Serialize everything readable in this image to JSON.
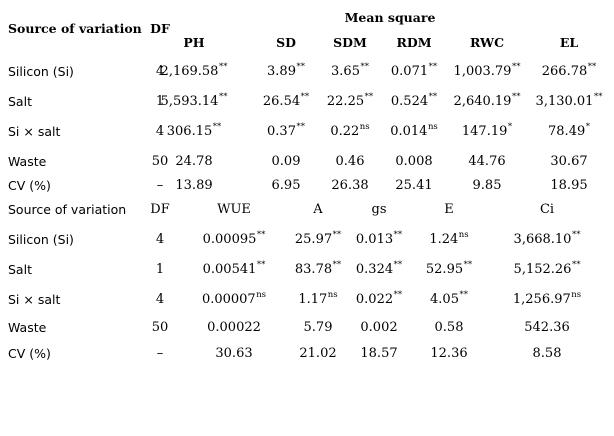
{
  "table1": {
    "header": {
      "group": "Mean square",
      "source": "Source of variation",
      "df": "DF",
      "cols": [
        "PH",
        "SD",
        "SDM",
        "RDM",
        "RWC",
        "EL"
      ]
    },
    "rows": [
      {
        "source": "Silicon (Si)",
        "df": "4",
        "cells": [
          {
            "v": "2,169.58",
            "s": "**"
          },
          {
            "v": "3.89",
            "s": "**"
          },
          {
            "v": "3.65",
            "s": "**"
          },
          {
            "v": "0.071",
            "s": "**"
          },
          {
            "v": "1,003.79",
            "s": "**"
          },
          {
            "v": "266.78",
            "s": "**"
          }
        ]
      },
      {
        "source": "Salt",
        "df": "1",
        "cells": [
          {
            "v": "5,593.14",
            "s": "**"
          },
          {
            "v": "26.54",
            "s": "**"
          },
          {
            "v": "22.25",
            "s": "**"
          },
          {
            "v": "0.524",
            "s": "**"
          },
          {
            "v": "2,640.19",
            "s": "**"
          },
          {
            "v": "3,130.01",
            "s": "**"
          }
        ]
      },
      {
        "source": "Si × salt",
        "df": "4",
        "cells": [
          {
            "v": "306.15",
            "s": "**"
          },
          {
            "v": "0.37",
            "s": "**"
          },
          {
            "v": "0.22",
            "s": "ns"
          },
          {
            "v": "0.014",
            "s": "ns"
          },
          {
            "v": "147.19",
            "s": "*"
          },
          {
            "v": "78.49",
            "s": "*"
          }
        ]
      },
      {
        "source": "Waste",
        "df": "50",
        "cells": [
          {
            "v": "24.78",
            "s": ""
          },
          {
            "v": "0.09",
            "s": ""
          },
          {
            "v": "0.46",
            "s": ""
          },
          {
            "v": "0.008",
            "s": ""
          },
          {
            "v": "44.76",
            "s": ""
          },
          {
            "v": "30.67",
            "s": ""
          }
        ]
      },
      {
        "source": "CV (%)",
        "df": "–",
        "cells": [
          {
            "v": "13.89",
            "s": ""
          },
          {
            "v": "6.95",
            "s": ""
          },
          {
            "v": "26.38",
            "s": ""
          },
          {
            "v": "25.41",
            "s": ""
          },
          {
            "v": "9.85",
            "s": ""
          },
          {
            "v": "18.95",
            "s": ""
          }
        ]
      }
    ]
  },
  "table2": {
    "header": {
      "source": "Source of variation",
      "df": "DF",
      "cols": [
        "WUE",
        "A",
        "gs",
        "E",
        "Ci"
      ]
    },
    "rows": [
      {
        "source": "Silicon (Si)",
        "df": "4",
        "cells": [
          {
            "v": "0.00095",
            "s": "**"
          },
          {
            "v": "25.97",
            "s": "**"
          },
          {
            "v": "0.013",
            "s": "**"
          },
          {
            "v": "1.24",
            "s": "ns"
          },
          {
            "v": "3,668.10",
            "s": "**"
          }
        ]
      },
      {
        "source": "Salt",
        "df": "1",
        "cells": [
          {
            "v": "0.00541",
            "s": "**"
          },
          {
            "v": "83.78",
            "s": "**"
          },
          {
            "v": "0.324",
            "s": "**"
          },
          {
            "v": "52.95",
            "s": "**"
          },
          {
            "v": "5,152.26",
            "s": "**"
          }
        ]
      },
      {
        "source": "Si × salt",
        "df": "4",
        "cells": [
          {
            "v": "0.00007",
            "s": "ns"
          },
          {
            "v": "1.17",
            "s": "ns"
          },
          {
            "v": "0.022",
            "s": "**"
          },
          {
            "v": "4.05",
            "s": "**"
          },
          {
            "v": "1,256.97",
            "s": "ns"
          }
        ]
      },
      {
        "source": "Waste",
        "df": "50",
        "cells": [
          {
            "v": "0.00022",
            "s": ""
          },
          {
            "v": "5.79",
            "s": ""
          },
          {
            "v": "0.002",
            "s": ""
          },
          {
            "v": "0.58",
            "s": ""
          },
          {
            "v": "542.36",
            "s": ""
          }
        ]
      },
      {
        "source": "CV (%)",
        "df": "–",
        "cells": [
          {
            "v": "30.63",
            "s": ""
          },
          {
            "v": "21.02",
            "s": ""
          },
          {
            "v": "18.57",
            "s": ""
          },
          {
            "v": "12.36",
            "s": ""
          },
          {
            "v": "8.58",
            "s": ""
          }
        ]
      }
    ]
  }
}
